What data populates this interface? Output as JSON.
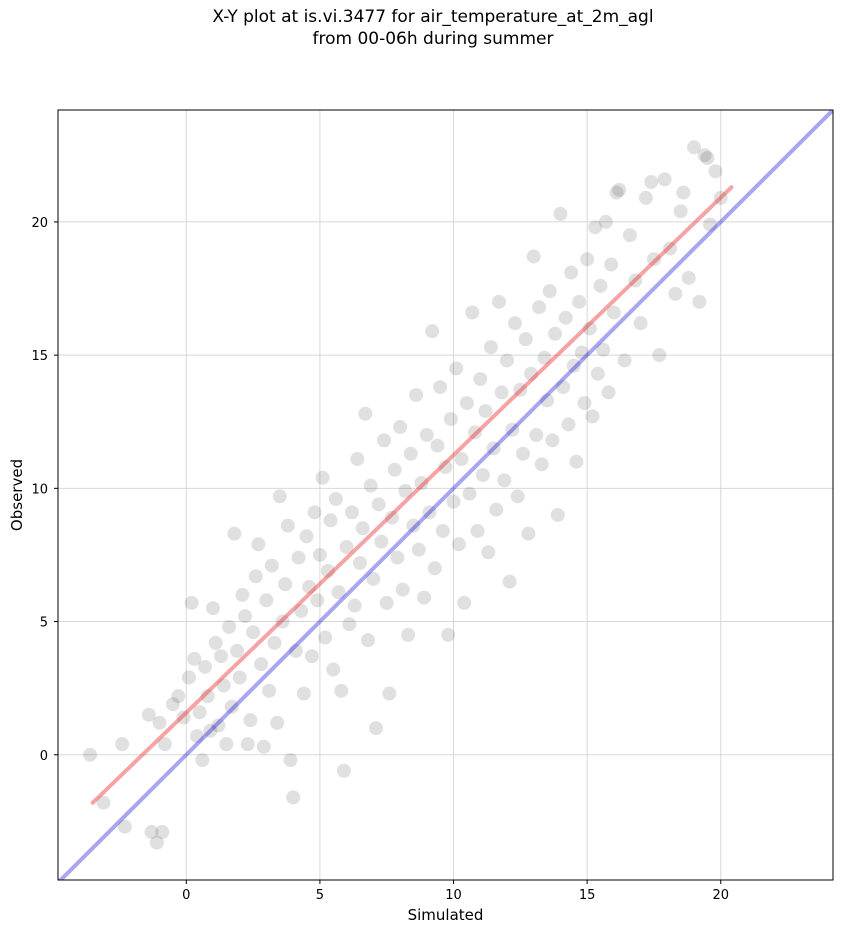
{
  "chart_data": {
    "type": "scatter",
    "title_line1": "X-Y plot at is.vi.3477 for air_temperature_at_2m_agl",
    "title_line2": "from 00-06h during summer",
    "xlabel": "Simulated",
    "ylabel": "Observed",
    "xlim": [
      -4.8,
      24.2
    ],
    "ylim": [
      -4.7,
      24.2
    ],
    "xticks": [
      0,
      5,
      10,
      15,
      20
    ],
    "yticks": [
      0,
      5,
      10,
      15,
      20
    ],
    "grid": true,
    "identity_line": {
      "color": "#0000dd",
      "from": [
        -4.8,
        -4.8
      ],
      "to": [
        24.2,
        24.2
      ]
    },
    "fit_line": {
      "color": "#ee3333",
      "from": [
        -3.5,
        -1.8
      ],
      "to": [
        20.4,
        21.3
      ]
    },
    "point_color": "#000000",
    "points": [
      [
        -3.6,
        0.0
      ],
      [
        -3.1,
        -1.8
      ],
      [
        -2.4,
        0.4
      ],
      [
        -2.3,
        -2.7
      ],
      [
        -1.3,
        -2.9
      ],
      [
        -1.1,
        -3.3
      ],
      [
        -0.9,
        -2.9
      ],
      [
        -1.4,
        1.5
      ],
      [
        -1.0,
        1.2
      ],
      [
        -0.8,
        0.4
      ],
      [
        -0.5,
        1.9
      ],
      [
        -0.3,
        2.2
      ],
      [
        -0.1,
        1.4
      ],
      [
        0.1,
        2.9
      ],
      [
        0.2,
        5.7
      ],
      [
        0.3,
        3.6
      ],
      [
        0.4,
        0.7
      ],
      [
        0.5,
        1.6
      ],
      [
        0.6,
        -0.2
      ],
      [
        0.7,
        3.3
      ],
      [
        0.8,
        2.2
      ],
      [
        0.9,
        0.9
      ],
      [
        1.0,
        5.5
      ],
      [
        1.1,
        4.2
      ],
      [
        1.2,
        1.1
      ],
      [
        1.3,
        3.7
      ],
      [
        1.4,
        2.6
      ],
      [
        1.5,
        0.4
      ],
      [
        1.6,
        4.8
      ],
      [
        1.7,
        1.8
      ],
      [
        1.8,
        8.3
      ],
      [
        1.9,
        3.9
      ],
      [
        2.0,
        2.9
      ],
      [
        2.1,
        6.0
      ],
      [
        2.2,
        5.2
      ],
      [
        2.3,
        0.4
      ],
      [
        2.4,
        1.3
      ],
      [
        2.5,
        4.6
      ],
      [
        2.6,
        6.7
      ],
      [
        2.7,
        7.9
      ],
      [
        2.8,
        3.4
      ],
      [
        2.9,
        0.3
      ],
      [
        3.0,
        5.8
      ],
      [
        3.1,
        2.4
      ],
      [
        3.2,
        7.1
      ],
      [
        3.3,
        4.2
      ],
      [
        3.4,
        1.2
      ],
      [
        3.5,
        9.7
      ],
      [
        3.6,
        5.0
      ],
      [
        3.7,
        6.4
      ],
      [
        3.8,
        8.6
      ],
      [
        3.9,
        -0.2
      ],
      [
        4.0,
        -1.6
      ],
      [
        4.1,
        3.9
      ],
      [
        4.2,
        7.4
      ],
      [
        4.3,
        5.4
      ],
      [
        4.4,
        2.3
      ],
      [
        4.5,
        8.2
      ],
      [
        4.6,
        6.3
      ],
      [
        4.7,
        3.7
      ],
      [
        4.8,
        9.1
      ],
      [
        4.9,
        5.8
      ],
      [
        5.0,
        7.5
      ],
      [
        5.1,
        10.4
      ],
      [
        5.2,
        4.4
      ],
      [
        5.3,
        6.9
      ],
      [
        5.4,
        8.8
      ],
      [
        5.5,
        3.2
      ],
      [
        5.6,
        9.6
      ],
      [
        5.7,
        6.1
      ],
      [
        5.8,
        2.4
      ],
      [
        5.9,
        -0.6
      ],
      [
        6.0,
        7.8
      ],
      [
        6.1,
        4.9
      ],
      [
        6.2,
        9.1
      ],
      [
        6.3,
        5.6
      ],
      [
        6.4,
        11.1
      ],
      [
        6.5,
        7.2
      ],
      [
        6.6,
        8.5
      ],
      [
        6.7,
        12.8
      ],
      [
        6.8,
        4.3
      ],
      [
        6.9,
        10.1
      ],
      [
        7.0,
        6.6
      ],
      [
        7.1,
        1.0
      ],
      [
        7.2,
        9.4
      ],
      [
        7.3,
        8.0
      ],
      [
        7.4,
        11.8
      ],
      [
        7.5,
        5.7
      ],
      [
        7.6,
        2.3
      ],
      [
        7.7,
        8.9
      ],
      [
        7.8,
        10.7
      ],
      [
        7.9,
        7.4
      ],
      [
        8.0,
        12.3
      ],
      [
        8.1,
        6.2
      ],
      [
        8.2,
        9.9
      ],
      [
        8.3,
        4.5
      ],
      [
        8.4,
        11.3
      ],
      [
        8.5,
        8.6
      ],
      [
        8.6,
        13.5
      ],
      [
        8.7,
        7.7
      ],
      [
        8.8,
        10.2
      ],
      [
        8.9,
        5.9
      ],
      [
        9.0,
        12.0
      ],
      [
        9.1,
        9.1
      ],
      [
        9.2,
        15.9
      ],
      [
        9.3,
        7.0
      ],
      [
        9.4,
        11.6
      ],
      [
        9.5,
        13.8
      ],
      [
        9.6,
        8.4
      ],
      [
        9.7,
        10.8
      ],
      [
        9.8,
        4.5
      ],
      [
        9.9,
        12.6
      ],
      [
        10.0,
        9.5
      ],
      [
        10.1,
        14.5
      ],
      [
        10.2,
        7.9
      ],
      [
        10.3,
        11.1
      ],
      [
        10.4,
        5.7
      ],
      [
        10.5,
        13.2
      ],
      [
        10.6,
        9.8
      ],
      [
        10.7,
        16.6
      ],
      [
        10.8,
        12.1
      ],
      [
        10.9,
        8.4
      ],
      [
        11.0,
        14.1
      ],
      [
        11.1,
        10.5
      ],
      [
        11.2,
        12.9
      ],
      [
        11.3,
        7.6
      ],
      [
        11.4,
        15.3
      ],
      [
        11.5,
        11.5
      ],
      [
        11.6,
        9.2
      ],
      [
        11.7,
        17.0
      ],
      [
        11.8,
        13.6
      ],
      [
        11.9,
        10.3
      ],
      [
        12.0,
        14.8
      ],
      [
        12.1,
        6.5
      ],
      [
        12.2,
        12.2
      ],
      [
        12.3,
        16.2
      ],
      [
        12.4,
        9.7
      ],
      [
        12.5,
        13.7
      ],
      [
        12.6,
        11.3
      ],
      [
        12.7,
        15.6
      ],
      [
        12.8,
        8.3
      ],
      [
        12.9,
        14.3
      ],
      [
        13.0,
        18.7
      ],
      [
        13.1,
        12.0
      ],
      [
        13.2,
        16.8
      ],
      [
        13.3,
        10.9
      ],
      [
        13.4,
        14.9
      ],
      [
        13.5,
        13.3
      ],
      [
        13.6,
        17.4
      ],
      [
        13.7,
        11.8
      ],
      [
        13.8,
        15.8
      ],
      [
        13.9,
        9.0
      ],
      [
        14.0,
        20.3
      ],
      [
        14.1,
        13.8
      ],
      [
        14.2,
        16.4
      ],
      [
        14.3,
        12.4
      ],
      [
        14.4,
        18.1
      ],
      [
        14.5,
        14.6
      ],
      [
        14.6,
        11.0
      ],
      [
        14.7,
        17.0
      ],
      [
        14.8,
        15.1
      ],
      [
        14.9,
        13.2
      ],
      [
        15.0,
        18.6
      ],
      [
        15.1,
        16.0
      ],
      [
        15.2,
        12.7
      ],
      [
        15.3,
        19.8
      ],
      [
        15.4,
        14.3
      ],
      [
        15.5,
        17.6
      ],
      [
        15.6,
        15.2
      ],
      [
        15.7,
        20.0
      ],
      [
        15.8,
        13.6
      ],
      [
        15.9,
        18.4
      ],
      [
        16.0,
        16.6
      ],
      [
        16.2,
        21.2
      ],
      [
        16.4,
        14.8
      ],
      [
        16.6,
        19.5
      ],
      [
        16.8,
        17.8
      ],
      [
        17.0,
        16.2
      ],
      [
        17.2,
        20.9
      ],
      [
        17.5,
        18.6
      ],
      [
        17.7,
        15.0
      ],
      [
        17.9,
        21.6
      ],
      [
        18.1,
        19.0
      ],
      [
        18.3,
        17.3
      ],
      [
        18.5,
        20.4
      ],
      [
        18.8,
        17.9
      ],
      [
        19.0,
        22.8
      ],
      [
        19.2,
        17.0
      ],
      [
        19.4,
        22.5
      ],
      [
        19.6,
        19.9
      ],
      [
        19.8,
        21.9
      ],
      [
        18.6,
        21.1
      ],
      [
        17.4,
        21.5
      ],
      [
        16.1,
        21.1
      ],
      [
        20.0,
        20.9
      ],
      [
        19.5,
        22.4
      ]
    ]
  }
}
